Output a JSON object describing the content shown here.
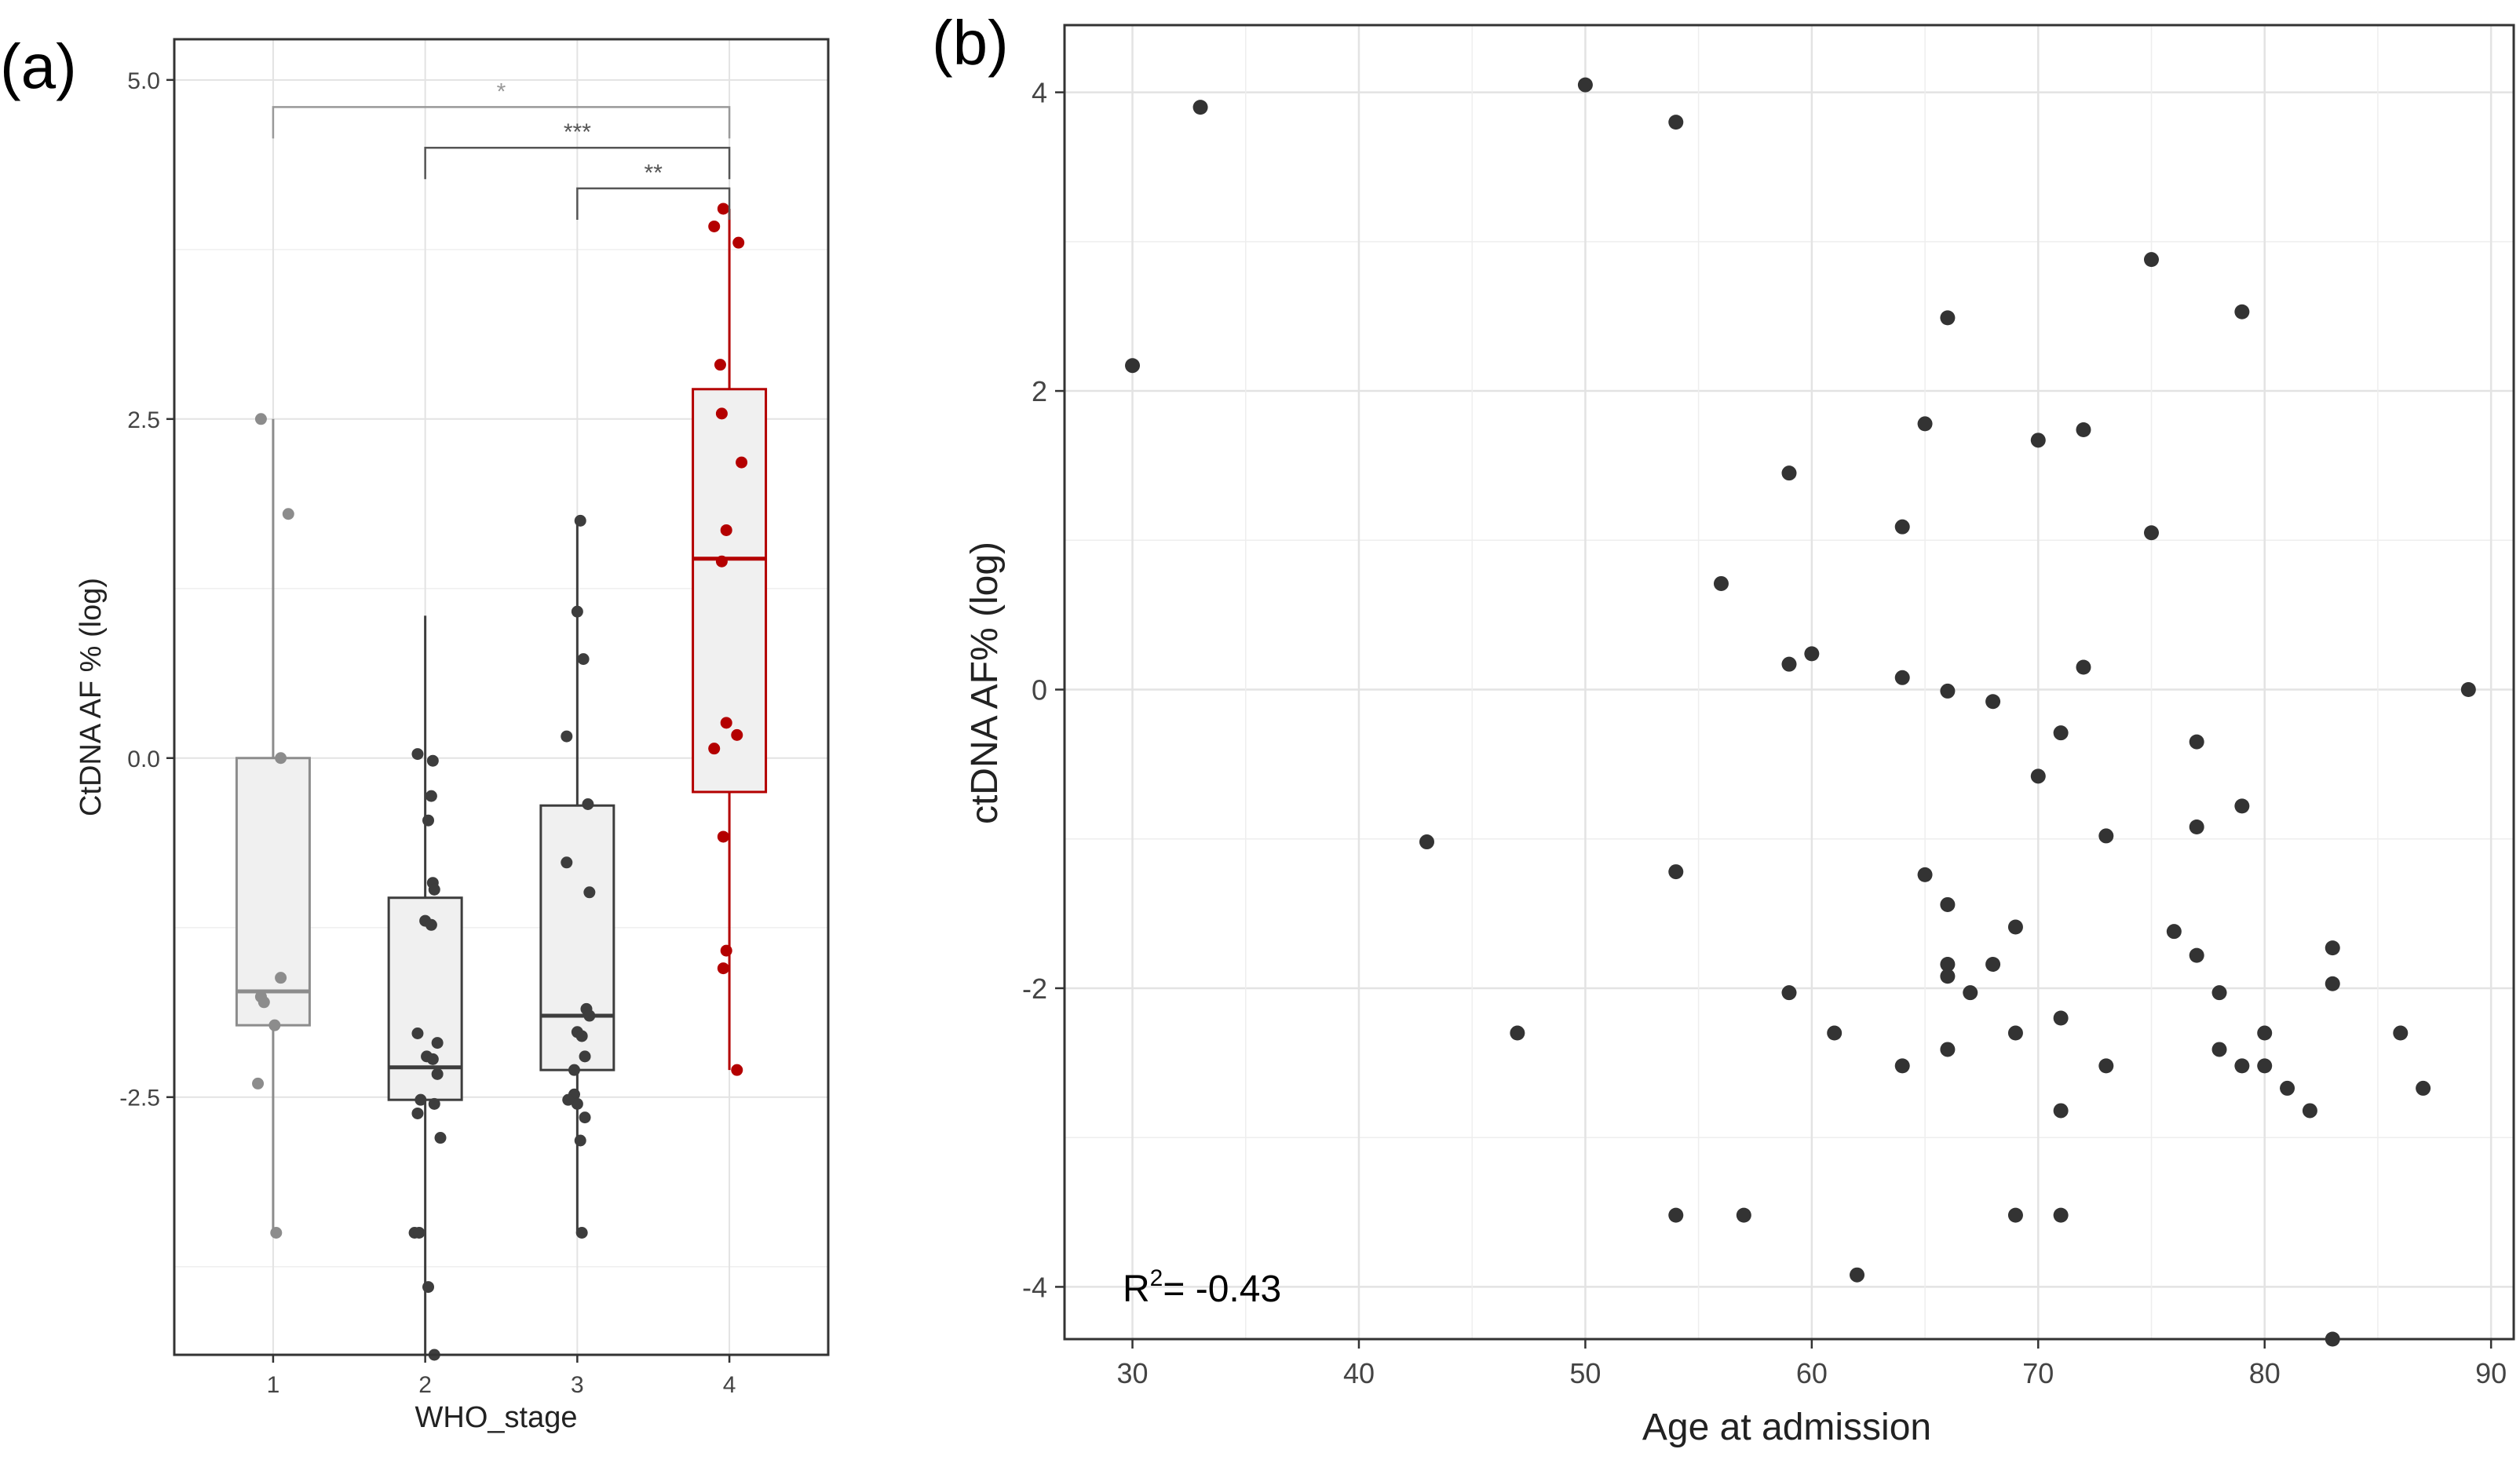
{
  "panels": [
    {
      "label": "(a)",
      "chart_data": {
        "type": "box",
        "xlabel": "WHO_stage",
        "ylabel": "CtDNA AF % (log)",
        "ylim": [
          -4.4,
          5.3
        ],
        "yticks": [
          -2.5,
          0.0,
          2.5,
          5.0
        ],
        "ytick_labels": [
          "-2.5",
          "0.0",
          "2.5",
          "5.0"
        ],
        "categories": [
          "1",
          "2",
          "3",
          "4"
        ],
        "colors": [
          "#8c8c8c",
          "#3d3d3d",
          "#3d3d3d",
          "#b40000"
        ],
        "box_fill": "#f0f0f0",
        "boxes": [
          {
            "category": "1",
            "q1": -1.97,
            "median": -1.72,
            "q3": 0.0,
            "whisker_low": -3.5,
            "whisker_high": 2.5
          },
          {
            "category": "2",
            "q1": -2.52,
            "median": -2.28,
            "q3": -1.03,
            "whisker_low": -4.4,
            "whisker_high": 1.05
          },
          {
            "category": "3",
            "q1": -2.3,
            "median": -1.9,
            "q3": -0.35,
            "whisker_low": -3.5,
            "whisker_high": 1.75
          },
          {
            "category": "4",
            "q1": -0.25,
            "median": 1.47,
            "q3": 2.72,
            "whisker_low": -2.3,
            "whisker_high": 4.05
          }
        ],
        "points": [
          [
            [
              -0.08,
              2.5
            ],
            [
              0.1,
              1.8
            ],
            [
              0.05,
              0.0
            ],
            [
              0.05,
              -1.62
            ],
            [
              -0.08,
              -1.76
            ],
            [
              -0.06,
              -1.8
            ],
            [
              0.01,
              -1.97
            ],
            [
              -0.1,
              -2.4
            ],
            [
              0.02,
              -3.5
            ]
          ],
          [
            [
              -0.05,
              0.03
            ],
            [
              0.05,
              -0.02
            ],
            [
              0.04,
              -0.28
            ],
            [
              0.02,
              -0.46
            ],
            [
              0.05,
              -0.92
            ],
            [
              0.06,
              -0.97
            ],
            [
              0.0,
              -1.2
            ],
            [
              0.04,
              -1.23
            ],
            [
              -0.05,
              -2.03
            ],
            [
              0.08,
              -2.1
            ],
            [
              0.01,
              -2.2
            ],
            [
              0.05,
              -2.22
            ],
            [
              0.08,
              -2.33
            ],
            [
              -0.03,
              -2.52
            ],
            [
              0.06,
              -2.55
            ],
            [
              -0.05,
              -2.62
            ],
            [
              0.1,
              -2.8
            ],
            [
              -0.07,
              -3.5
            ],
            [
              -0.04,
              -3.5
            ],
            [
              0.02,
              -3.9
            ],
            [
              0.06,
              -4.4
            ]
          ],
          [
            [
              0.02,
              1.75
            ],
            [
              0.0,
              1.08
            ],
            [
              0.04,
              0.73
            ],
            [
              -0.07,
              0.16
            ],
            [
              0.07,
              -0.34
            ],
            [
              -0.07,
              -0.77
            ],
            [
              0.08,
              -0.99
            ],
            [
              0.06,
              -1.85
            ],
            [
              0.08,
              -1.9
            ],
            [
              0.0,
              -2.02
            ],
            [
              0.03,
              -2.05
            ],
            [
              0.05,
              -2.2
            ],
            [
              -0.02,
              -2.3
            ],
            [
              -0.02,
              -2.48
            ],
            [
              0.0,
              -2.55
            ],
            [
              -0.06,
              -2.52
            ],
            [
              0.05,
              -2.65
            ],
            [
              0.02,
              -2.82
            ],
            [
              0.03,
              -3.5
            ]
          ],
          [
            [
              -0.1,
              3.92
            ],
            [
              -0.04,
              4.05
            ],
            [
              0.06,
              3.8
            ],
            [
              -0.06,
              2.9
            ],
            [
              -0.05,
              2.54
            ],
            [
              0.08,
              2.18
            ],
            [
              -0.02,
              1.68
            ],
            [
              -0.05,
              1.45
            ],
            [
              -0.02,
              0.26
            ],
            [
              0.05,
              0.17
            ],
            [
              -0.1,
              0.07
            ],
            [
              -0.04,
              -0.58
            ],
            [
              -0.02,
              -1.42
            ],
            [
              -0.04,
              -1.55
            ],
            [
              0.05,
              -2.3
            ]
          ]
        ],
        "significance": [
          {
            "from": "1",
            "to": "4",
            "label": "*",
            "y": 4.8,
            "color": "#999999"
          },
          {
            "from": "2",
            "to": "4",
            "label": "***",
            "y": 4.5,
            "color": "#555555"
          },
          {
            "from": "3",
            "to": "4",
            "label": "**",
            "y": 4.2,
            "color": "#555555"
          }
        ]
      }
    },
    {
      "label": "(b)",
      "annotation": "R²= -0.43",
      "annotation_base": "R",
      "annotation_sup": "2",
      "annotation_rest": "= -0.43",
      "chart_data": {
        "type": "scatter",
        "xlabel": "Age at admission",
        "ylabel": "ctDNA AF% (log)",
        "xlim": [
          27,
          91
        ],
        "ylim": [
          -4.35,
          4.45
        ],
        "xticks": [
          30,
          40,
          50,
          60,
          70,
          80,
          90
        ],
        "xtick_labels": [
          "30",
          "40",
          "50",
          "60",
          "70",
          "80",
          "90"
        ],
        "yticks": [
          -4,
          -2,
          0,
          2,
          4
        ],
        "ytick_labels": [
          "-4",
          "-2",
          "0",
          "2",
          "4"
        ],
        "point_color": "#333333",
        "points": [
          [
            30,
            2.17
          ],
          [
            33,
            3.9
          ],
          [
            43,
            -1.02
          ],
          [
            47,
            -2.3
          ],
          [
            50,
            4.05
          ],
          [
            54,
            3.8
          ],
          [
            54,
            -1.22
          ],
          [
            54,
            -3.52
          ],
          [
            56,
            0.71
          ],
          [
            57,
            -3.52
          ],
          [
            59,
            1.45
          ],
          [
            59,
            0.17
          ],
          [
            59,
            -2.03
          ],
          [
            60,
            0.24
          ],
          [
            61,
            -2.3
          ],
          [
            62,
            -3.92
          ],
          [
            64,
            1.09
          ],
          [
            64,
            0.08
          ],
          [
            64,
            -2.52
          ],
          [
            65,
            1.78
          ],
          [
            65,
            -1.24
          ],
          [
            66,
            2.49
          ],
          [
            66,
            -0.01
          ],
          [
            66,
            -1.44
          ],
          [
            66,
            -1.84
          ],
          [
            66,
            -1.92
          ],
          [
            66,
            -2.41
          ],
          [
            67,
            -2.03
          ],
          [
            68,
            -0.08
          ],
          [
            68,
            -1.84
          ],
          [
            69,
            -1.59
          ],
          [
            69,
            -2.3
          ],
          [
            69,
            -3.52
          ],
          [
            70,
            1.67
          ],
          [
            70,
            -0.58
          ],
          [
            71,
            -0.29
          ],
          [
            71,
            -2.2
          ],
          [
            71,
            -2.82
          ],
          [
            71,
            -3.52
          ],
          [
            72,
            1.74
          ],
          [
            72,
            0.15
          ],
          [
            73,
            -0.98
          ],
          [
            73,
            -2.52
          ],
          [
            75,
            2.88
          ],
          [
            75,
            1.05
          ],
          [
            76,
            -1.62
          ],
          [
            77,
            -0.35
          ],
          [
            77,
            -0.92
          ],
          [
            77,
            -1.78
          ],
          [
            78,
            -2.03
          ],
          [
            78,
            -2.41
          ],
          [
            79,
            2.53
          ],
          [
            79,
            -0.78
          ],
          [
            79,
            -2.52
          ],
          [
            80,
            -2.3
          ],
          [
            80,
            -2.52
          ],
          [
            81,
            -2.67
          ],
          [
            82,
            -2.82
          ],
          [
            83,
            -1.73
          ],
          [
            83,
            -1.97
          ],
          [
            83,
            -4.35
          ],
          [
            86,
            -2.3
          ],
          [
            87,
            -2.67
          ],
          [
            89,
            0.0
          ]
        ]
      }
    }
  ]
}
